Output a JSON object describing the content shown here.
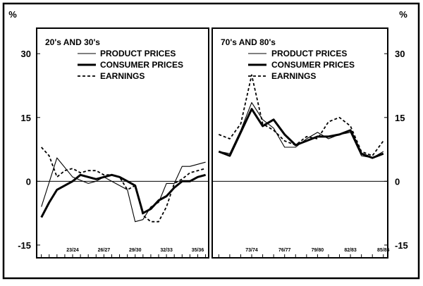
{
  "chart_data": [
    {
      "type": "line",
      "title": "20's AND 30's",
      "y_unit": "%",
      "ylim": [
        -18,
        36
      ],
      "y_ticks": [
        30,
        15,
        0,
        -15
      ],
      "y_tick_labels": [
        "30",
        "15",
        "0",
        "-15"
      ],
      "x_ticks": [
        4,
        8,
        12,
        16,
        20
      ],
      "x_tick_labels": [
        "23/24",
        "26/27",
        "29/30",
        "32/33",
        "35/36"
      ],
      "xlim": [
        -0.6,
        21.4
      ],
      "grid": false,
      "legend_position": "top-right",
      "series": [
        {
          "name": "PRODUCT PRICES",
          "style": "thin",
          "x": [
            0,
            2,
            4,
            6,
            7,
            8,
            10,
            11,
            12,
            13,
            14,
            15,
            16,
            17,
            18,
            19,
            20,
            21
          ],
          "values": [
            -6,
            5.5,
            1,
            -0.5,
            0,
            1,
            -1,
            -2,
            -9.5,
            -9,
            -6,
            -5,
            -0.5,
            -0.5,
            3.5,
            3.5,
            4,
            4.5
          ]
        },
        {
          "name": "CONSUMER PRICES",
          "style": "thick",
          "x": [
            0,
            1,
            2,
            4,
            5,
            6,
            7,
            8,
            9,
            10,
            11,
            12,
            13,
            14,
            15,
            16,
            17,
            18,
            19,
            20,
            21
          ],
          "values": [
            -8.5,
            -5,
            -2,
            0,
            1.5,
            1,
            0.5,
            1,
            1.5,
            1,
            0,
            -1,
            -7.5,
            -6.5,
            -4.5,
            -3.5,
            -1.5,
            0,
            0,
            1,
            1.5
          ]
        },
        {
          "name": "EARNINGS",
          "style": "dashed",
          "x": [
            0,
            1,
            2,
            3,
            4,
            5,
            6,
            7,
            8,
            9,
            10,
            11,
            12,
            13,
            14,
            15,
            16,
            17,
            18,
            19,
            20,
            21
          ],
          "values": [
            8,
            6,
            1,
            2.5,
            3,
            2,
            2.5,
            2.5,
            1.5,
            1.5,
            1,
            -2,
            -1,
            -8,
            -9.5,
            -9.5,
            -6,
            -0.5,
            0.5,
            2,
            2.5,
            3
          ]
        }
      ]
    },
    {
      "type": "line",
      "title": "70's AND 80's",
      "y_unit": "%",
      "ylim": [
        -18,
        36
      ],
      "y_ticks": [
        30,
        15,
        0,
        -15
      ],
      "y_tick_labels": [
        "30",
        "15",
        "0",
        "-15"
      ],
      "x_ticks": [
        3,
        6,
        9,
        12,
        15
      ],
      "x_tick_labels": [
        "73/74",
        "76/77",
        "79/80",
        "82/83",
        "85/86"
      ],
      "xlim": [
        -0.6,
        15.4
      ],
      "grid": false,
      "legend_position": "top-right",
      "series": [
        {
          "name": "PRODUCT PRICES",
          "style": "thin",
          "x": [
            0,
            1,
            2,
            3,
            4,
            5,
            6,
            7,
            8,
            9,
            10,
            11,
            12,
            13,
            14,
            15
          ],
          "values": [
            7,
            6.5,
            12,
            18.5,
            14.5,
            12.5,
            8,
            8,
            10,
            11.5,
            10,
            11,
            11.5,
            6,
            5.5,
            7
          ]
        },
        {
          "name": "CONSUMER PRICES",
          "style": "thick",
          "x": [
            0,
            1,
            2,
            3,
            4,
            5,
            6,
            7,
            8,
            9,
            10,
            11,
            12,
            13,
            14,
            15
          ],
          "values": [
            7,
            6,
            11.5,
            17,
            13,
            14.5,
            11,
            8.5,
            9.5,
            10.5,
            10.5,
            11,
            12,
            6.5,
            5.5,
            6.5
          ]
        },
        {
          "name": "EARNINGS",
          "style": "dashed",
          "x": [
            0,
            1,
            2,
            3,
            4,
            5,
            6,
            7,
            8,
            9,
            10,
            11,
            12,
            13,
            14,
            15
          ],
          "values": [
            11,
            10,
            13.5,
            25,
            13.5,
            12,
            9.5,
            8.5,
            10.5,
            10,
            14,
            15,
            13,
            7,
            6,
            9.5
          ]
        }
      ]
    }
  ]
}
